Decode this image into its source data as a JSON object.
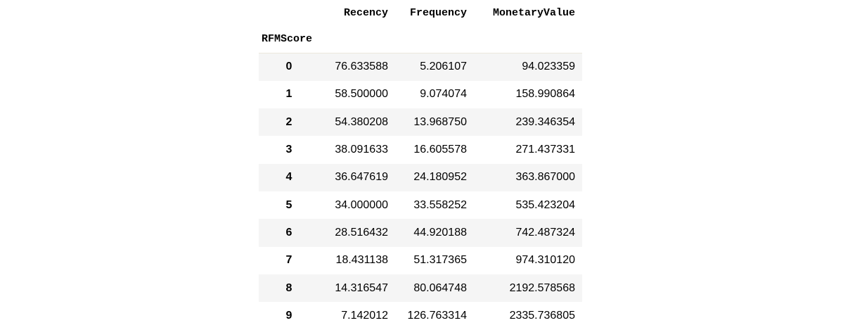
{
  "table": {
    "columns": [
      "Recency",
      "Frequency",
      "MonetaryValue"
    ],
    "index_name": "RFMScore",
    "rows": [
      {
        "index": "0",
        "values": [
          "76.633588",
          "5.206107",
          "94.023359"
        ]
      },
      {
        "index": "1",
        "values": [
          "58.500000",
          "9.074074",
          "158.990864"
        ]
      },
      {
        "index": "2",
        "values": [
          "54.380208",
          "13.968750",
          "239.346354"
        ]
      },
      {
        "index": "3",
        "values": [
          "38.091633",
          "16.605578",
          "271.437331"
        ]
      },
      {
        "index": "4",
        "values": [
          "36.647619",
          "24.180952",
          "363.867000"
        ]
      },
      {
        "index": "5",
        "values": [
          "34.000000",
          "33.558252",
          "535.423204"
        ]
      },
      {
        "index": "6",
        "values": [
          "28.516432",
          "44.920188",
          "742.487324"
        ]
      },
      {
        "index": "7",
        "values": [
          "18.431138",
          "51.317365",
          "974.310120"
        ]
      },
      {
        "index": "8",
        "values": [
          "14.316547",
          "80.064748",
          "2192.578568"
        ]
      },
      {
        "index": "9",
        "values": [
          "7.142012",
          "126.763314",
          "2335.736805"
        ]
      }
    ]
  },
  "colors": {
    "stripe": "#f5f5f5",
    "background": "#ffffff",
    "header_rule": "#ece8dc",
    "text": "#000000"
  }
}
